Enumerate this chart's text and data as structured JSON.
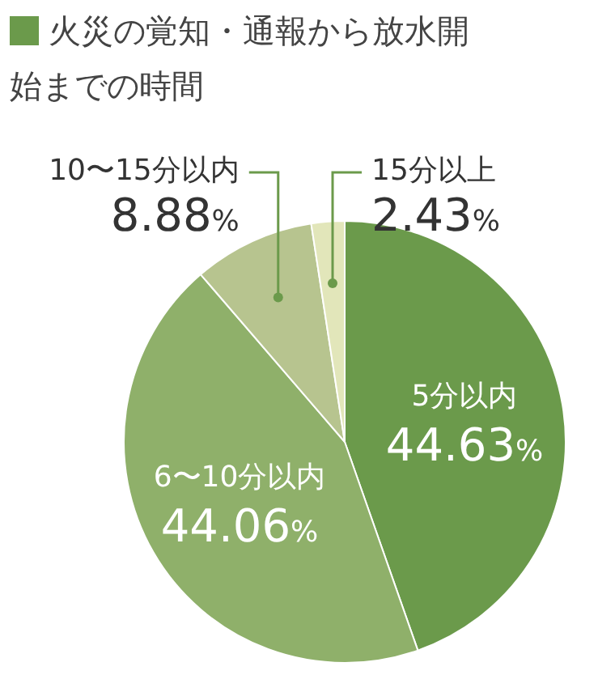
{
  "chart_data": {
    "type": "pie",
    "title": "火災の覚知・通報から放水開始までの時間",
    "categories": [
      "5分以内",
      "6〜10分以内",
      "10〜15分以内",
      "15分以上"
    ],
    "values": [
      44.63,
      44.06,
      8.88,
      2.43
    ],
    "colors": [
      "#6b9a4b",
      "#8fb06a",
      "#b7c48f",
      "#e2e6ba"
    ],
    "value_labels": [
      "44.63%",
      "44.06%",
      "8.88%",
      "2.43%"
    ],
    "legend": false
  }
}
